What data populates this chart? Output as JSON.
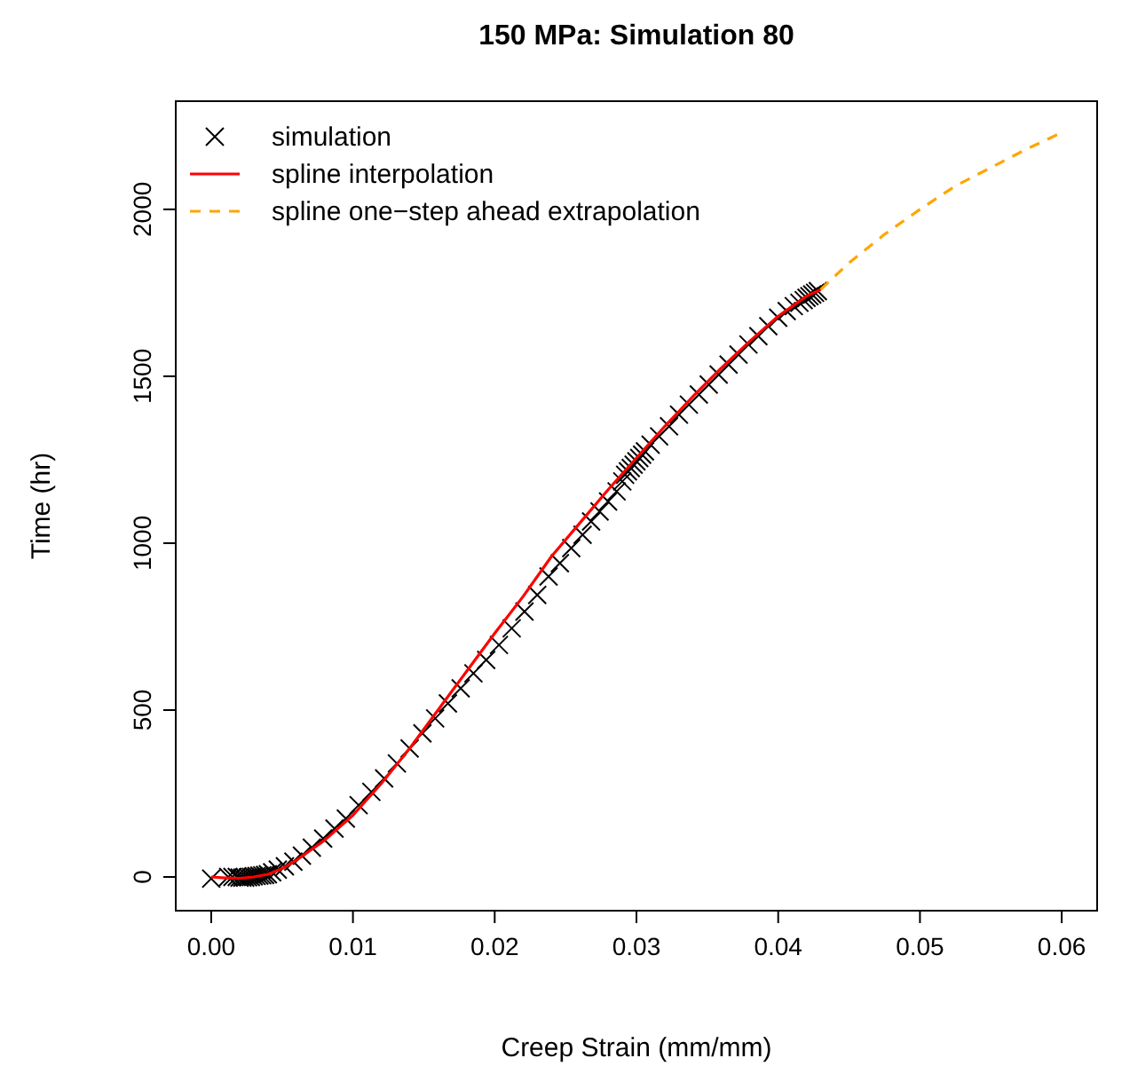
{
  "chart_data": {
    "type": "line",
    "title": "150 MPa: Simulation 80",
    "xlabel": "Creep Strain (mm/mm)",
    "ylabel": "Time (hr)",
    "xlim": [
      -0.0025,
      0.0625
    ],
    "ylim": [
      -101,
      2324
    ],
    "xticks": [
      {
        "value": 0,
        "label": "0.00"
      },
      {
        "value": 0.01,
        "label": "0.01"
      },
      {
        "value": 0.02,
        "label": "0.02"
      },
      {
        "value": 0.03,
        "label": "0.03"
      },
      {
        "value": 0.04,
        "label": "0.04"
      },
      {
        "value": 0.05,
        "label": "0.05"
      },
      {
        "value": 0.06,
        "label": "0.06"
      }
    ],
    "yticks": [
      0,
      500,
      1000,
      1500,
      2000
    ],
    "grid": false,
    "legend": "top left",
    "series": [
      {
        "name": "simulation",
        "type": "scatter",
        "marker": "cross",
        "color": "#000000",
        "x": [
          0,
          0.0012,
          0.0015,
          0.0018,
          0.002,
          0.0022,
          0.0024,
          0.0026,
          0.0028,
          0.003,
          0.0032,
          0.0034,
          0.0036,
          0.0038,
          0.004,
          0.0043,
          0.0047,
          0.0052,
          0.0058,
          0.0064,
          0.0071,
          0.0079,
          0.0087,
          0.0095,
          0.0104,
          0.0113,
          0.0122,
          0.0131,
          0.014,
          0.0149,
          0.0158,
          0.0167,
          0.0176,
          0.0185,
          0.0194,
          0.0203,
          0.0212,
          0.0221,
          0.023,
          0.0238,
          0.0246,
          0.0254,
          0.0262,
          0.0268,
          0.0274,
          0.028,
          0.0286,
          0.029,
          0.0292,
          0.0294,
          0.0296,
          0.0298,
          0.03,
          0.0302,
          0.0304,
          0.0306,
          0.031,
          0.0316,
          0.0323,
          0.033,
          0.0337,
          0.0344,
          0.0351,
          0.0358,
          0.0365,
          0.0372,
          0.0379,
          0.0386,
          0.0393,
          0.04,
          0.0406,
          0.0411,
          0.0415,
          0.0418,
          0.042,
          0.0422,
          0.0424,
          0.0426,
          0.0428
        ],
        "values": [
          -5,
          0,
          0,
          0,
          -2,
          -2,
          -2,
          -1,
          0,
          2,
          3,
          4,
          5,
          6,
          8,
          14,
          22,
          32,
          46,
          64,
          88,
          115,
          145,
          175,
          215,
          255,
          295,
          340,
          385,
          430,
          475,
          520,
          565,
          610,
          650,
          695,
          745,
          795,
          845,
          900,
          940,
          985,
          1025,
          1065,
          1095,
          1125,
          1155,
          1185,
          1205,
          1215,
          1225,
          1235,
          1245,
          1255,
          1265,
          1275,
          1295,
          1320,
          1350,
          1385,
          1415,
          1445,
          1475,
          1505,
          1535,
          1565,
          1595,
          1620,
          1650,
          1675,
          1695,
          1710,
          1720,
          1728,
          1735,
          1740,
          1745,
          1750,
          1755
        ]
      },
      {
        "name": "spline interpolation",
        "marker": "none",
        "line_style": "solid",
        "color": "#ff0000",
        "x": [
          0,
          0.001,
          0.002,
          0.003,
          0.004,
          0.005,
          0.006,
          0.008,
          0.01,
          0.012,
          0.014,
          0.016,
          0.018,
          0.02,
          0.022,
          0.024,
          0.026,
          0.028,
          0.03,
          0.032,
          0.034,
          0.036,
          0.038,
          0.04,
          0.042,
          0.043
        ],
        "values": [
          0,
          -3,
          -4,
          0,
          8,
          25,
          50,
          110,
          185,
          280,
          385,
          500,
          615,
          730,
          840,
          960,
          1060,
          1160,
          1255,
          1350,
          1440,
          1525,
          1605,
          1680,
          1740,
          1760
        ]
      },
      {
        "name": "spline one−step ahead extrapolation",
        "marker": "none",
        "line_style": "dashed",
        "color": "#ffa500",
        "x": [
          0.043,
          0.045,
          0.0475,
          0.05,
          0.0525,
          0.055,
          0.0575,
          0.06
        ],
        "values": [
          1760,
          1840,
          1925,
          2000,
          2070,
          2125,
          2180,
          2230
        ]
      }
    ]
  }
}
